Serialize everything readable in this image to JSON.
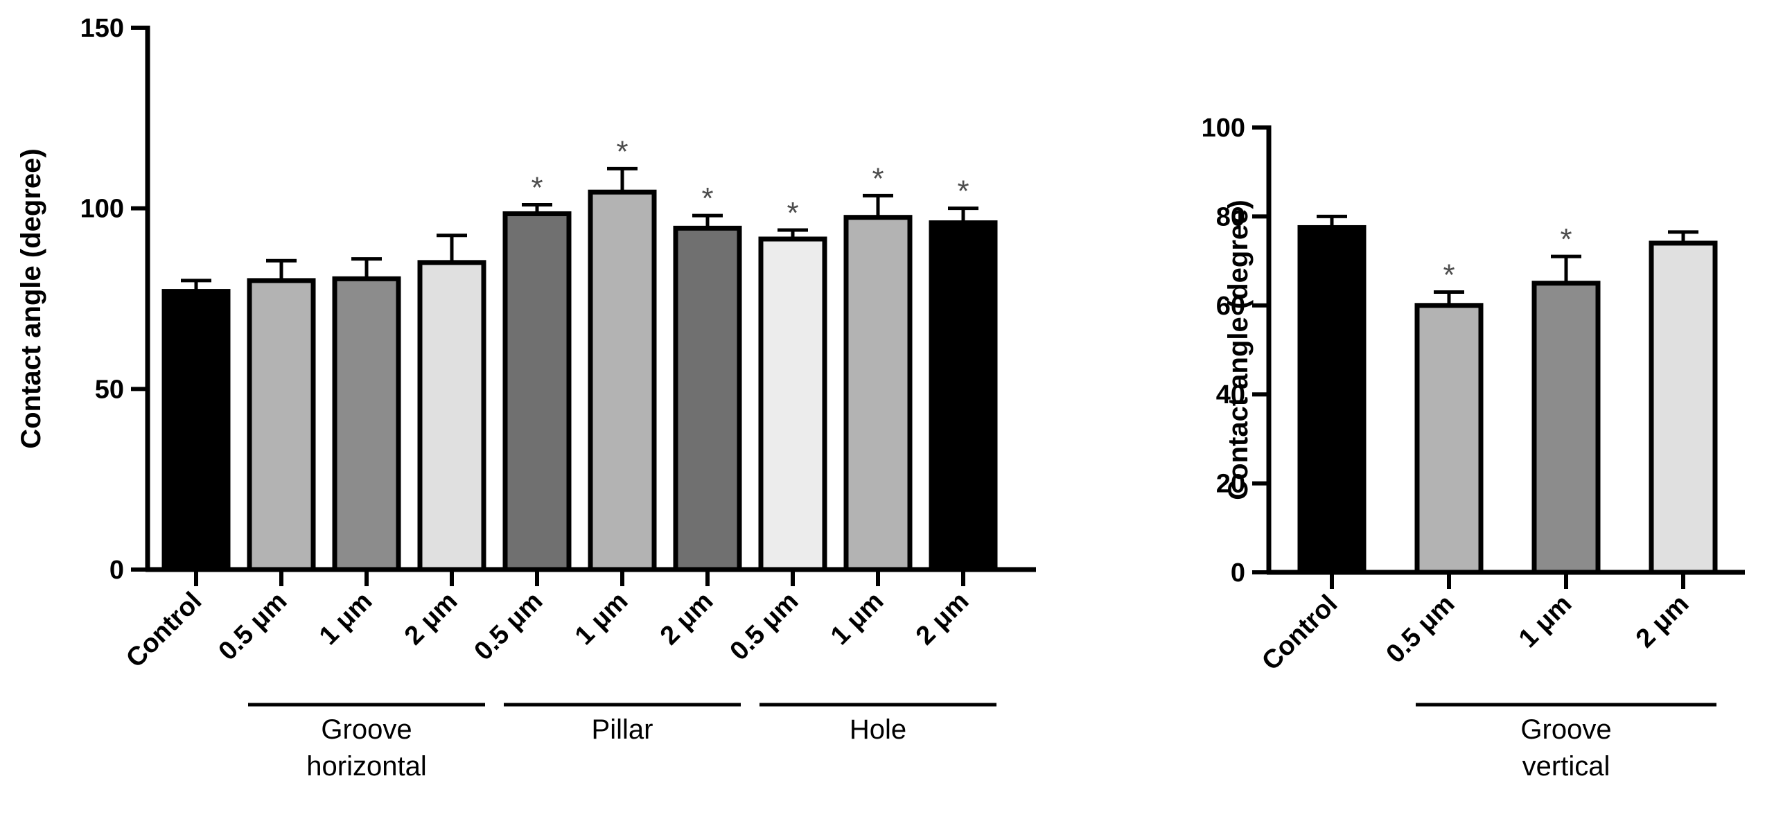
{
  "chart_data": [
    {
      "type": "bar",
      "ylabel": "Contact angle (degree)",
      "ylim": [
        0,
        150
      ],
      "yticks": [
        0,
        50,
        100,
        150
      ],
      "categories": [
        "Control",
        "0.5 μm",
        "1 μm",
        "2 μm",
        "0.5 μm",
        "1 μm",
        "2 μm",
        "0.5 μm",
        "1 μm",
        "2 μm"
      ],
      "values": [
        77,
        80,
        80.5,
        85,
        98.5,
        104.5,
        94.5,
        91.5,
        97.5,
        96
      ],
      "errors": [
        3,
        5.5,
        5.5,
        7.5,
        2.5,
        6.5,
        3.5,
        2.5,
        6,
        4
      ],
      "significant": [
        false,
        false,
        false,
        false,
        true,
        true,
        true,
        true,
        true,
        true
      ],
      "significance_marker": "*",
      "colors": [
        "#000000",
        "#b3b3b3",
        "#8c8c8c",
        "#e0e0e0",
        "#707070",
        "#b3b3b3",
        "#707070",
        "#ececec",
        "#b3b3b3",
        "#000000"
      ],
      "groups": [
        {
          "label_lines": [
            "Groove",
            "horizontal"
          ],
          "start": 1,
          "end": 3
        },
        {
          "label_lines": [
            "Pillar"
          ],
          "start": 4,
          "end": 6
        },
        {
          "label_lines": [
            "Hole"
          ],
          "start": 7,
          "end": 9
        }
      ]
    },
    {
      "type": "bar",
      "ylabel": "Contact angle  (degree)",
      "ylim": [
        0,
        100
      ],
      "yticks": [
        0,
        20,
        40,
        60,
        80,
        100
      ],
      "categories": [
        "Control",
        "0.5 μm",
        "1 μm",
        "2 μm"
      ],
      "values": [
        77.5,
        60,
        65,
        74
      ],
      "errors": [
        2.5,
        3,
        6,
        2.5
      ],
      "significant": [
        false,
        true,
        true,
        false
      ],
      "significance_marker": "*",
      "colors": [
        "#000000",
        "#b3b3b3",
        "#8c8c8c",
        "#e0e0e0"
      ],
      "groups": [
        {
          "label_lines": [
            "Groove",
            "vertical"
          ],
          "start": 1,
          "end": 3
        }
      ]
    }
  ]
}
